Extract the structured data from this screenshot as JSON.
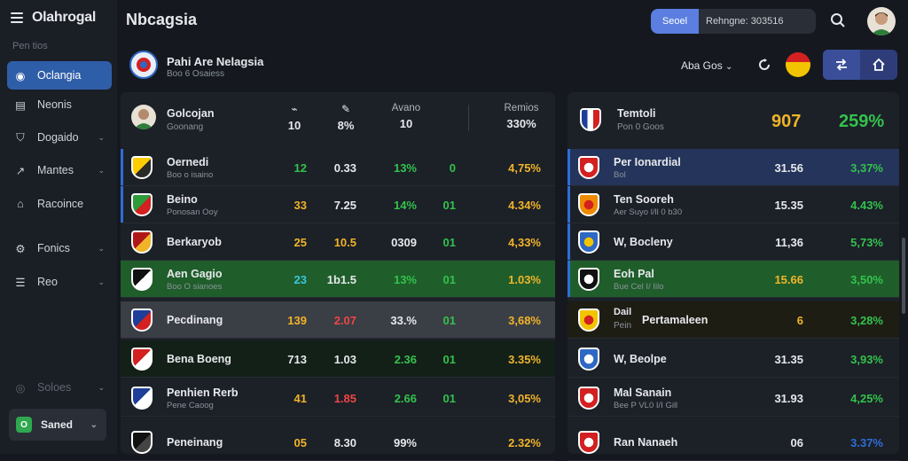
{
  "app": {
    "brand": "Olahrogal",
    "title": "Nbcagsia"
  },
  "sidebar": {
    "label": "Pen tios",
    "items": [
      {
        "label": "Oclangia",
        "icon": "globe-icon",
        "active": true
      },
      {
        "label": "Neonis",
        "icon": "document-icon"
      },
      {
        "label": "Dogaido",
        "icon": "shield-icon",
        "chevron": true
      },
      {
        "label": "Mantes",
        "icon": "trend-icon",
        "chevron": true
      },
      {
        "label": "Racoince",
        "icon": "home-icon"
      },
      {
        "label": "Fonics",
        "icon": "settings-icon",
        "chevron": true
      },
      {
        "label": "Reo",
        "icon": "list-icon",
        "chevron": true
      },
      {
        "label": "Soloes",
        "icon": "circle-icon",
        "chevron": true,
        "dim": true
      }
    ],
    "bottom_button": {
      "badge": "O",
      "label": "Saned"
    }
  },
  "header": {
    "seg_active": "Seoel",
    "seg_inactive": "Rehngne: 303516"
  },
  "subheader": {
    "title": "Pahi Are Nelagsia",
    "subtitle": "Boo 6 Osaiess",
    "select": "Aba Gos"
  },
  "left_panel": {
    "head": {
      "name": "Golcojan",
      "sub": "Goonang",
      "col1_icon": "whistle-icon",
      "col1_value": "10",
      "col2_icon": "boot-icon",
      "col2_value": "8%",
      "col3_label": "Avano",
      "col3_value": "10",
      "col4_label": "Remios",
      "col4_value": "330%"
    },
    "rows": [
      {
        "name": "Oernedi",
        "sub": "Boo o isaino",
        "v1": "12",
        "v2": "0.33",
        "v3": "13%",
        "v4": "0",
        "v5": "4,75%",
        "c1": "g",
        "c2": "w",
        "c3": "g",
        "c5": "y",
        "crest": [
          "#ffcc00",
          "#2a2a2a"
        ],
        "accent": true
      },
      {
        "name": "Beino",
        "sub": "Ponosan Ooy",
        "v1": "33",
        "v2": "7.25",
        "v3": "14%",
        "v4": "01",
        "v5": "4.34%",
        "c1": "y",
        "c2": "w",
        "c3": "g",
        "c5": "y",
        "crest": [
          "#2e9a3a",
          "#d32020"
        ],
        "accent": true
      },
      {
        "name": "Berkaryob",
        "sub": "",
        "v1": "25",
        "v2": "10.5",
        "v3": "0309",
        "v4": "01",
        "v5": "4,33%",
        "c1": "y",
        "c2": "y",
        "c3": "w",
        "c5": "y",
        "crest": [
          "#b01818",
          "#f0b429"
        ]
      },
      {
        "name": "Aen Gagio",
        "sub": "Boo O sianoes",
        "v1": "23",
        "v2": "1b1.5",
        "v3": "13%",
        "v4": "01",
        "v5": "1.03%",
        "c1": "c",
        "c2": "w",
        "c3": "g",
        "c5": "y",
        "crest": [
          "#111111",
          "#ffffff"
        ],
        "bg": "#1f5e2a"
      },
      {
        "name": "Pecdinang",
        "sub": "",
        "v1": "139",
        "v2": "2.07",
        "v3": "33.%",
        "v4": "01",
        "v5": "3,68%",
        "c1": "y",
        "c2": "r",
        "c3": "w",
        "c5": "y",
        "crest": [
          "#1e3e9a",
          "#d32020"
        ],
        "bg": "#3a3e45"
      },
      {
        "name": "Bena Boeng",
        "sub": "",
        "v1": "713",
        "v2": "1.03",
        "v3": "2.36",
        "v4": "01",
        "v5": "3.35%",
        "c1": "w",
        "c2": "w",
        "c3": "g",
        "c5": "y",
        "crest": [
          "#d32020",
          "#ffffff"
        ],
        "bg": "#132018"
      },
      {
        "name": "Penhien Rerb",
        "sub": "Pene Caoog",
        "v1": "41",
        "v2": "1.85",
        "v3": "2.66",
        "v4": "01",
        "v5": "3,05%",
        "c1": "y",
        "c2": "r",
        "c3": "g",
        "c5": "y",
        "crest": [
          "#1e3e9a",
          "#ffffff"
        ]
      },
      {
        "name": "Peneinang",
        "sub": "",
        "v1": "05",
        "v2": "8.30",
        "v3": "99%",
        "v4": "",
        "v5": "2.32%",
        "c1": "y",
        "c2": "w",
        "c3": "w",
        "c5": "y",
        "crest": [
          "#111111",
          "#444444"
        ]
      }
    ]
  },
  "right_panel": {
    "head": {
      "name": "Temtoli",
      "sub": "Pon 0 Goos",
      "v1": "907",
      "v2": "259%"
    },
    "rows": [
      {
        "name": "Per Ionardial",
        "sub": "Bol",
        "v1": "31.56",
        "v2": "3,37%",
        "crest": [
          "#d32020",
          "#ffffff"
        ],
        "bg": "#24345a",
        "accent": true
      },
      {
        "name": "Ten Sooreh",
        "sub": "Aer Suyo l/ll 0 b30",
        "v1": "15.35",
        "v2": "4.43%",
        "crest": [
          "#f08a00",
          "#d32020"
        ],
        "accent": true
      },
      {
        "name": "W, Bocleny",
        "sub": "",
        "v1": "11,36",
        "v2": "5,73%",
        "crest": [
          "#2e68c4",
          "#f2c400"
        ],
        "accent": true
      },
      {
        "name": "Eoh Pal",
        "sub": "Bue Cel I/ Iilo",
        "v1": "15.66",
        "v2": "3,50%",
        "crest": [
          "#111111",
          "#ffffff"
        ],
        "bg": "#1f5e2a",
        "v1c": "y",
        "accent": true
      },
      {
        "name": "Pertamaleen",
        "sub": "",
        "pre": "Dail",
        "pre2": "Pein",
        "v1": "6",
        "v2": "3,28%",
        "crest": [
          "#f2c400",
          "#d32020"
        ],
        "bg": "#1e1d14",
        "v1c": "y"
      },
      {
        "name": "W, Beolpe",
        "sub": "",
        "v1": "31.35",
        "v2": "3,93%",
        "crest": [
          "#2e68c4",
          "#ffffff"
        ]
      },
      {
        "name": "Mal Sanain",
        "sub": "Bee P VL0 I/I Gill",
        "v1": "31.93",
        "v2": "4,25%",
        "crest": [
          "#d32020",
          "#ffffff"
        ]
      },
      {
        "name": "Ran Nanaeh",
        "sub": "",
        "v1": "06",
        "v2": "3.37%",
        "crest": [
          "#d32020",
          "#ffffff"
        ],
        "v2c": "b"
      }
    ]
  }
}
